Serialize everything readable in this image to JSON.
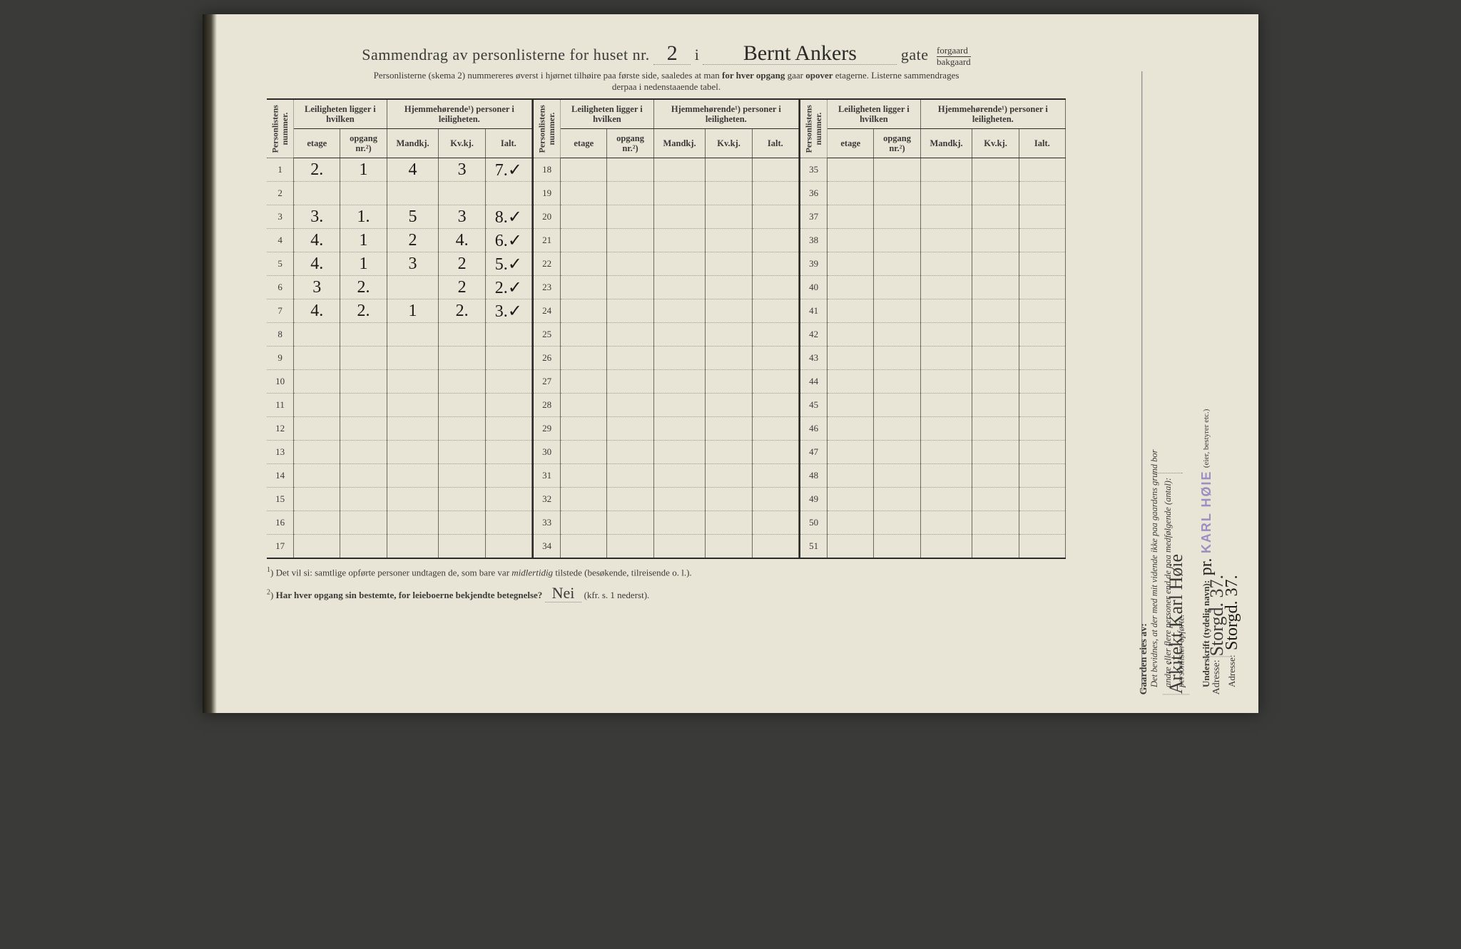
{
  "title": {
    "prefix": "Sammendrag av personlisterne for huset nr.",
    "house_nr": "2",
    "sep": "i",
    "street": "Bernt Ankers",
    "suffix_word": "gate",
    "suffix_top": "forgaard",
    "suffix_bot": "bakgaard"
  },
  "subhead": {
    "a": "Personlisterne (skema 2) nummereres øverst i hjørnet tilhøire paa første side, saaledes at man ",
    "b": "for hver opgang",
    "c": " gaar ",
    "d": "opover",
    "e": " etagerne.  Listerne sammendrages",
    "f": "derpaa i nedenstaaende tabel."
  },
  "columns": {
    "personlistens": "Personlistens nummer.",
    "leil_group": "Leiligheten ligger i hvilken",
    "hjem_group": "Hjemmehørende¹) personer i leiligheten.",
    "etage": "etage",
    "opgang": "opgang nr.²)",
    "mandkj": "Mandkj.",
    "kvkj": "Kv.kj.",
    "ialt": "Ialt."
  },
  "blocks": [
    {
      "start": 1,
      "end": 17,
      "rows": [
        {
          "n": "1",
          "etg": "2.",
          "opg": "1",
          "m": "4",
          "k": "3",
          "i": "7.✓"
        },
        {
          "n": "2"
        },
        {
          "n": "3",
          "etg": "3.",
          "opg": "1.",
          "m": "5",
          "k": "3",
          "i": "8.✓"
        },
        {
          "n": "4",
          "etg": "4.",
          "opg": "1",
          "m": "2",
          "k": "4.",
          "i": "6.✓"
        },
        {
          "n": "5",
          "etg": "4.",
          "opg": "1",
          "m": "3",
          "k": "2",
          "i": "5.✓"
        },
        {
          "n": "6",
          "etg": "3",
          "opg": "2.",
          "m": "",
          "k": "2",
          "i": "2.✓"
        },
        {
          "n": "7",
          "etg": "4.",
          "opg": "2.",
          "m": "1",
          "k": "2.",
          "i": "3.✓"
        },
        {
          "n": "8"
        },
        {
          "n": "9"
        },
        {
          "n": "10"
        },
        {
          "n": "11"
        },
        {
          "n": "12"
        },
        {
          "n": "13"
        },
        {
          "n": "14"
        },
        {
          "n": "15"
        },
        {
          "n": "16"
        },
        {
          "n": "17"
        }
      ]
    },
    {
      "start": 18,
      "end": 34
    },
    {
      "start": 35,
      "end": 51
    }
  ],
  "footnotes": {
    "f1": "Det vil si: samtlige opførte personer undtagen de, som bare var ",
    "f1_em": "midlertidig",
    "f1_b": " tilstede (besøkende, tilreisende o. l.).",
    "f2": "Har hver opgang sin bestemte, for leieboerne bekjendte betegnelse?",
    "f2_ans": "Nei",
    "f2_tail": "(kfr. s. 1 nederst)."
  },
  "attest": {
    "line1": "Det bevidnes, at der med mit vidende ikke paa gaardens grund bor",
    "line2": "andre eller flere personer end de paa medfølgende (antal):",
    "line3": "personlister opførte.",
    "undersk_label": "Underskrift (tydelig navn):",
    "undersk_hand": "pr.",
    "stamp": "KARL HØIE",
    "role": "(eier, bestyrer etc.)",
    "adresse_label": "Adresse:",
    "adresse_hand": "Storgd. 37."
  },
  "owner": {
    "label": "Gaarden eies av:",
    "name": "Arkitekt Karl Høie",
    "adresse_label": "Adresse:",
    "adresse": "Storgd. 37."
  },
  "colors": {
    "paper": "#e8e4d6",
    "ink": "#2a2a28",
    "stamp": "#9a8fc2"
  }
}
